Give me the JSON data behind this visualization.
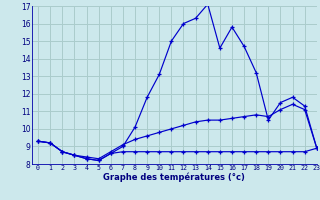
{
  "xlabel": "Graphe des températures (°c)",
  "bg_color": "#cce8ec",
  "grid_color": "#aacccc",
  "line_color": "#0000cc",
  "hours": [
    0,
    1,
    2,
    3,
    4,
    5,
    6,
    7,
    8,
    9,
    10,
    11,
    12,
    13,
    14,
    15,
    16,
    17,
    18,
    19,
    20,
    21,
    22,
    23
  ],
  "temp": [
    9.3,
    9.2,
    8.7,
    8.5,
    8.3,
    8.2,
    8.6,
    9.0,
    10.1,
    11.8,
    13.1,
    15.0,
    16.0,
    16.3,
    17.1,
    14.6,
    15.8,
    14.7,
    13.2,
    10.5,
    11.5,
    11.8,
    11.3,
    8.9
  ],
  "avg_line": [
    9.3,
    9.2,
    8.7,
    8.5,
    8.4,
    8.3,
    8.7,
    9.1,
    9.4,
    9.6,
    9.8,
    10.0,
    10.2,
    10.4,
    10.5,
    10.5,
    10.6,
    10.7,
    10.8,
    10.7,
    11.1,
    11.4,
    11.1,
    8.9
  ],
  "min_line": [
    9.3,
    9.2,
    8.7,
    8.5,
    8.3,
    8.2,
    8.6,
    8.7,
    8.7,
    8.7,
    8.7,
    8.7,
    8.7,
    8.7,
    8.7,
    8.7,
    8.7,
    8.7,
    8.7,
    8.7,
    8.7,
    8.7,
    8.7,
    8.9
  ],
  "ylim": [
    8,
    17
  ],
  "xlim": [
    -0.5,
    23
  ]
}
